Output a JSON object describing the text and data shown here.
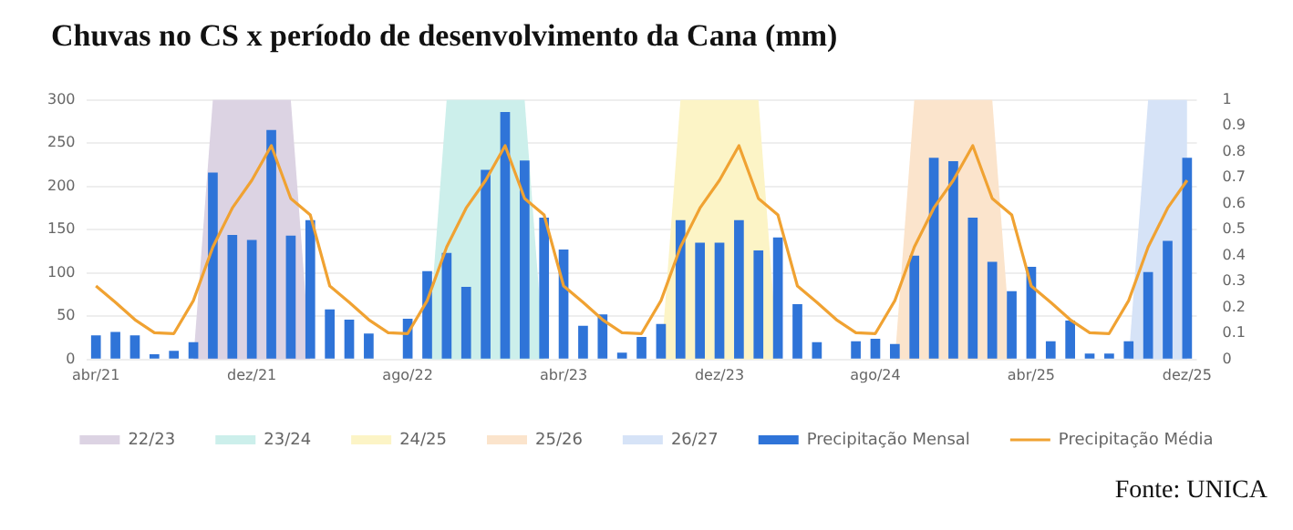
{
  "chart_data": {
    "type": "bar",
    "title": "Chuvas no CS x período de desenvolvimento da Cana (mm)",
    "categories": [
      "abr/21",
      null,
      null,
      null,
      null,
      null,
      null,
      null,
      "dez/21",
      null,
      null,
      null,
      null,
      null,
      null,
      null,
      "ago/22",
      null,
      null,
      null,
      null,
      null,
      null,
      null,
      "abr/23",
      null,
      null,
      null,
      null,
      null,
      null,
      null,
      "dez/23",
      null,
      null,
      null,
      null,
      null,
      null,
      null,
      "ago/24",
      null,
      null,
      null,
      null,
      null,
      null,
      null,
      "abr/25",
      null,
      null,
      null,
      null,
      null,
      null,
      null,
      "dez/25"
    ],
    "series": [
      {
        "name": "22/23",
        "type": "area",
        "axis": "y2",
        "color": "#dcd3e3",
        "values": [
          null,
          null,
          null,
          null,
          null,
          0,
          1,
          1,
          1,
          1,
          1,
          0,
          null,
          null,
          null,
          null,
          null,
          null,
          null,
          null,
          null,
          null,
          null,
          null,
          null,
          null,
          null,
          null,
          null,
          null,
          null,
          null,
          null,
          null,
          null,
          null,
          null,
          null,
          null,
          null,
          null,
          null,
          null,
          null,
          null,
          null,
          null,
          null,
          null,
          null,
          null,
          null,
          null,
          null,
          null,
          null,
          null
        ]
      },
      {
        "name": "23/24",
        "type": "area",
        "axis": "y2",
        "color": "#ccefeb",
        "values": [
          null,
          null,
          null,
          null,
          null,
          null,
          null,
          null,
          null,
          null,
          null,
          null,
          null,
          null,
          null,
          null,
          null,
          0,
          1,
          1,
          1,
          1,
          1,
          0,
          null,
          null,
          null,
          null,
          null,
          null,
          null,
          null,
          null,
          null,
          null,
          null,
          null,
          null,
          null,
          null,
          null,
          null,
          null,
          null,
          null,
          null,
          null,
          null,
          null,
          null,
          null,
          null,
          null,
          null,
          null,
          null,
          null
        ]
      },
      {
        "name": "24/25",
        "type": "area",
        "axis": "y2",
        "color": "#fcf4c6",
        "values": [
          null,
          null,
          null,
          null,
          null,
          null,
          null,
          null,
          null,
          null,
          null,
          null,
          null,
          null,
          null,
          null,
          null,
          null,
          null,
          null,
          null,
          null,
          null,
          null,
          null,
          null,
          null,
          null,
          null,
          0,
          1,
          1,
          1,
          1,
          1,
          0,
          null,
          null,
          null,
          null,
          null,
          null,
          null,
          null,
          null,
          null,
          null,
          null,
          null,
          null,
          null,
          null,
          null,
          null,
          null,
          null,
          null
        ]
      },
      {
        "name": "25/26",
        "type": "area",
        "axis": "y2",
        "color": "#fbe4cc",
        "values": [
          null,
          null,
          null,
          null,
          null,
          null,
          null,
          null,
          null,
          null,
          null,
          null,
          null,
          null,
          null,
          null,
          null,
          null,
          null,
          null,
          null,
          null,
          null,
          null,
          null,
          null,
          null,
          null,
          null,
          null,
          null,
          null,
          null,
          null,
          null,
          null,
          null,
          null,
          null,
          null,
          null,
          0,
          1,
          1,
          1,
          1,
          1,
          0,
          null,
          null,
          null,
          null,
          null,
          null,
          null,
          null,
          null
        ]
      },
      {
        "name": "26/27",
        "type": "area",
        "axis": "y2",
        "color": "#d6e3f7",
        "values": [
          null,
          null,
          null,
          null,
          null,
          null,
          null,
          null,
          null,
          null,
          null,
          null,
          null,
          null,
          null,
          null,
          null,
          null,
          null,
          null,
          null,
          null,
          null,
          null,
          null,
          null,
          null,
          null,
          null,
          null,
          null,
          null,
          null,
          null,
          null,
          null,
          null,
          null,
          null,
          null,
          null,
          null,
          null,
          null,
          null,
          null,
          null,
          null,
          null,
          null,
          null,
          null,
          null,
          0,
          1,
          1,
          1
        ]
      },
      {
        "name": "Precipitação Mensal",
        "axis": "y",
        "color": "#2f74d8",
        "values": [
          28,
          32,
          28,
          6,
          10,
          20,
          216,
          144,
          138,
          265,
          143,
          161,
          58,
          46,
          30,
          0,
          47,
          102,
          123,
          84,
          219,
          286,
          230,
          164,
          127,
          39,
          52,
          8,
          26,
          41,
          161,
          135,
          135,
          161,
          126,
          141,
          64,
          20,
          0,
          21,
          24,
          18,
          120,
          233,
          229,
          164,
          113,
          79,
          107,
          21,
          45,
          7,
          7,
          21,
          101,
          137,
          233
        ]
      },
      {
        "name": "Precipitação Média",
        "type": "line",
        "axis": "y",
        "color": "#f0a232",
        "values": [
          85,
          66,
          46,
          31,
          30,
          68,
          130,
          175,
          207,
          247,
          186,
          167,
          85,
          66,
          46,
          31,
          30,
          68,
          130,
          175,
          207,
          247,
          186,
          167,
          85,
          66,
          46,
          31,
          30,
          68,
          130,
          175,
          207,
          247,
          186,
          167,
          85,
          66,
          46,
          31,
          30,
          68,
          130,
          175,
          207,
          247,
          186,
          167,
          85,
          66,
          46,
          31,
          30,
          68,
          130,
          175,
          207
        ]
      }
    ],
    "ylim": [
      0,
      300
    ],
    "yticks": [
      0,
      50,
      100,
      150,
      200,
      250,
      300
    ],
    "y2lim": [
      0,
      1
    ],
    "y2ticks": [
      0,
      0.1,
      0.2,
      0.3,
      0.4,
      0.5,
      0.6,
      0.7,
      0.8,
      0.9,
      1
    ],
    "grid": "y",
    "legend": "bottom",
    "marker": "none",
    "line_style": "solid",
    "annotations": [
      "Fonte: UNICA"
    ]
  }
}
